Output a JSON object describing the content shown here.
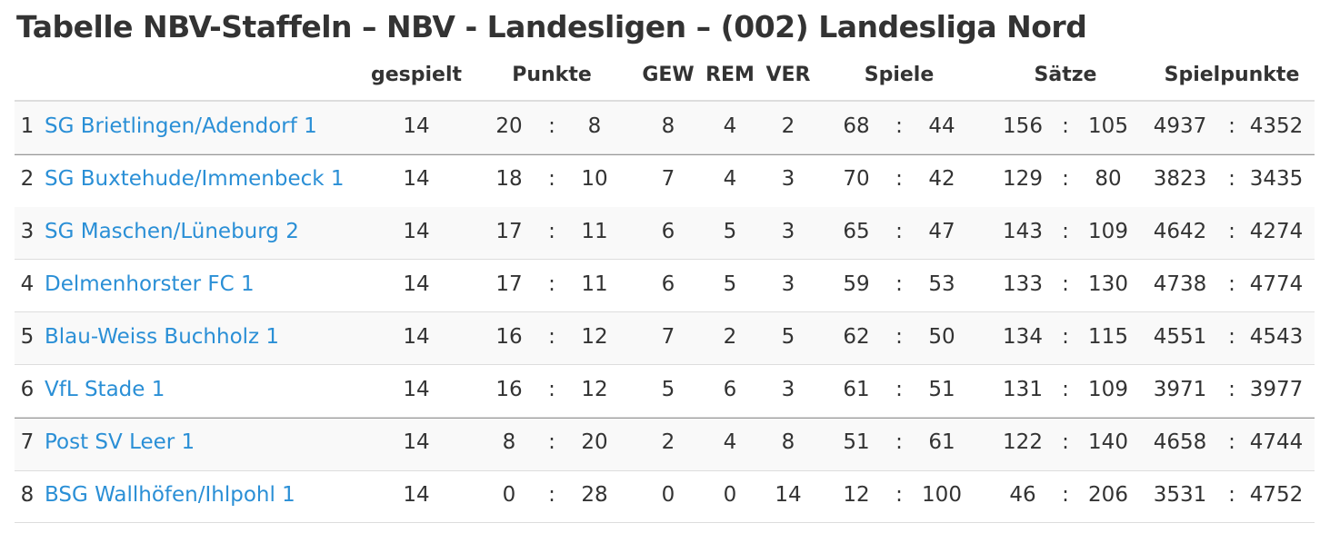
{
  "header": {
    "title": "Tabelle NBV-Staffeln – NBV - Landesligen – (002) Landesliga Nord"
  },
  "table": {
    "separator": ":",
    "columns": {
      "gespielt": "gespielt",
      "punkte": "Punkte",
      "gew": "GEW",
      "rem": "REM",
      "ver": "VER",
      "spiele": "Spiele",
      "saetze": "Sätze",
      "spielpunkte": "Spielpunkte"
    },
    "rows": [
      {
        "rank": "1",
        "team": "SG Brietlingen/Adendorf 1",
        "gespielt": "14",
        "punkte": [
          "20",
          "8"
        ],
        "gew": "8",
        "rem": "4",
        "ver": "2",
        "spiele": [
          "68",
          "44"
        ],
        "saetze": [
          "156",
          "105"
        ],
        "spielpunkte": [
          "4937",
          "4352"
        ]
      },
      {
        "rank": "2",
        "team": "SG Buxtehude/Immenbeck 1",
        "gespielt": "14",
        "punkte": [
          "18",
          "10"
        ],
        "gew": "7",
        "rem": "4",
        "ver": "3",
        "spiele": [
          "70",
          "42"
        ],
        "saetze": [
          "129",
          "80"
        ],
        "spielpunkte": [
          "3823",
          "3435"
        ]
      },
      {
        "rank": "3",
        "team": "SG Maschen/Lüneburg 2",
        "gespielt": "14",
        "punkte": [
          "17",
          "11"
        ],
        "gew": "6",
        "rem": "5",
        "ver": "3",
        "spiele": [
          "65",
          "47"
        ],
        "saetze": [
          "143",
          "109"
        ],
        "spielpunkte": [
          "4642",
          "4274"
        ]
      },
      {
        "rank": "4",
        "team": "Delmenhorster FC 1",
        "gespielt": "14",
        "punkte": [
          "17",
          "11"
        ],
        "gew": "6",
        "rem": "5",
        "ver": "3",
        "spiele": [
          "59",
          "53"
        ],
        "saetze": [
          "133",
          "130"
        ],
        "spielpunkte": [
          "4738",
          "4774"
        ]
      },
      {
        "rank": "5",
        "team": "Blau-Weiss Buchholz 1",
        "gespielt": "14",
        "punkte": [
          "16",
          "12"
        ],
        "gew": "7",
        "rem": "2",
        "ver": "5",
        "spiele": [
          "62",
          "50"
        ],
        "saetze": [
          "134",
          "115"
        ],
        "spielpunkte": [
          "4551",
          "4543"
        ]
      },
      {
        "rank": "6",
        "team": "VfL Stade 1",
        "gespielt": "14",
        "punkte": [
          "16",
          "12"
        ],
        "gew": "5",
        "rem": "6",
        "ver": "3",
        "spiele": [
          "61",
          "51"
        ],
        "saetze": [
          "131",
          "109"
        ],
        "spielpunkte": [
          "3971",
          "3977"
        ]
      },
      {
        "rank": "7",
        "team": "Post SV Leer 1",
        "gespielt": "14",
        "punkte": [
          "8",
          "20"
        ],
        "gew": "2",
        "rem": "4",
        "ver": "8",
        "spiele": [
          "51",
          "61"
        ],
        "saetze": [
          "122",
          "140"
        ],
        "spielpunkte": [
          "4658",
          "4744"
        ]
      },
      {
        "rank": "8",
        "team": "BSG Wallhöfen/Ihlpohl 1",
        "gespielt": "14",
        "punkte": [
          "0",
          "28"
        ],
        "gew": "0",
        "rem": "0",
        "ver": "14",
        "spiele": [
          "12",
          "100"
        ],
        "saetze": [
          "46",
          "206"
        ],
        "spielpunkte": [
          "3531",
          "4752"
        ]
      }
    ]
  }
}
